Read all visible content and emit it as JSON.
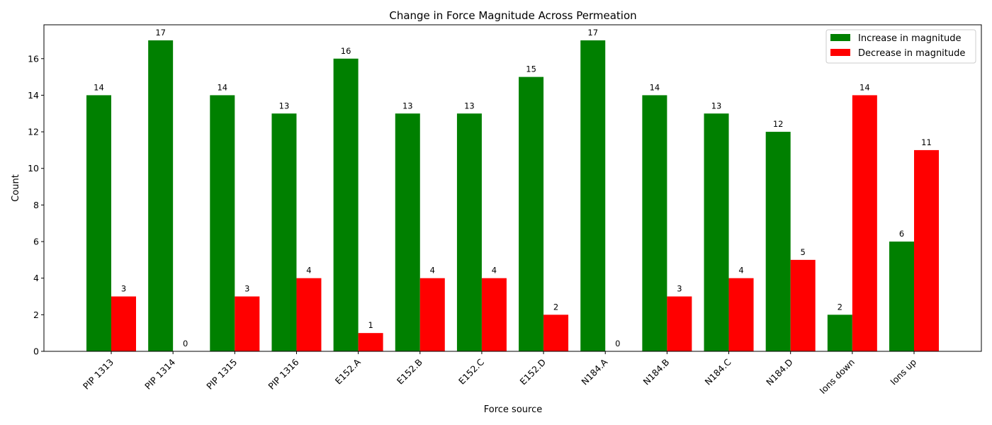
{
  "chart_data": {
    "type": "bar",
    "title": "Change in Force Magnitude Across Permeation",
    "xlabel": "Force source",
    "ylabel": "Count",
    "categories": [
      "PIP 1313",
      "PIP 1314",
      "PIP 1315",
      "PIP 1316",
      "E152.A",
      "E152.B",
      "E152.C",
      "E152.D",
      "N184.A",
      "N184.B",
      "N184.C",
      "N184.D",
      "Ions down",
      "Ions up"
    ],
    "series": [
      {
        "name": "Increase in magnitude",
        "color": "#008000",
        "values": [
          14,
          17,
          14,
          13,
          16,
          13,
          13,
          15,
          17,
          14,
          13,
          12,
          2,
          6
        ]
      },
      {
        "name": "Decrease in magnitude",
        "color": "#ff0000",
        "values": [
          3,
          0,
          3,
          4,
          1,
          4,
          4,
          2,
          0,
          3,
          4,
          5,
          14,
          11
        ]
      }
    ],
    "ylim": [
      0,
      17.85
    ],
    "yticks": [
      0,
      2,
      4,
      6,
      8,
      10,
      12,
      14,
      16
    ],
    "grid": false,
    "legend_position": "top-right",
    "data_labels": true
  }
}
